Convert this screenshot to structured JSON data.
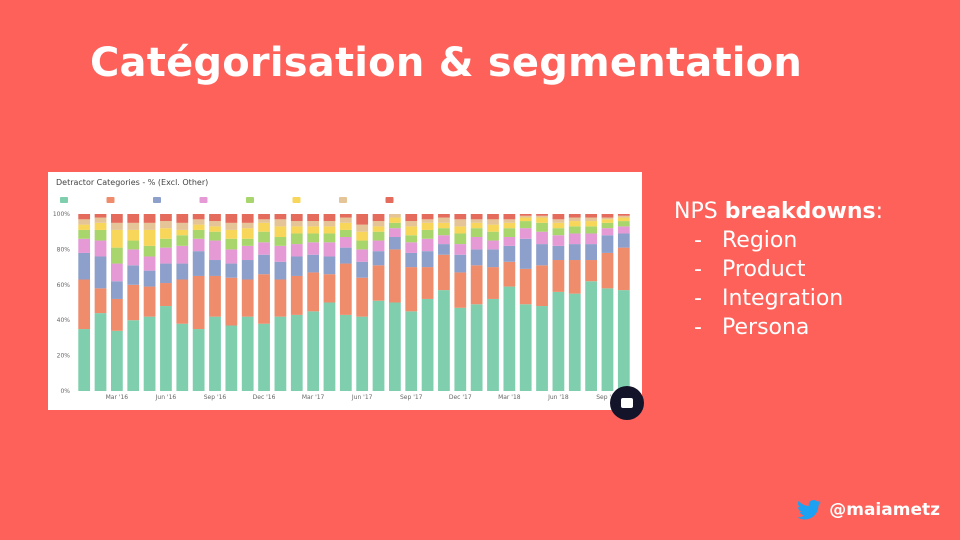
{
  "slide": {
    "title": "Catégorisation & segmentation"
  },
  "side": {
    "heading_prefix": "NPS ",
    "heading_bold": "breakdowns",
    "heading_suffix": ":",
    "bullet": "-",
    "items": [
      "Region",
      "Product",
      "Integration",
      "Persona"
    ]
  },
  "footer": {
    "handle": "@maiametz",
    "icon": "twitter-bird-icon"
  },
  "chart_data": {
    "type": "bar",
    "title": "Detractor Categories - % (Excl. Other)",
    "stacked": true,
    "xlabel": "",
    "ylabel": "",
    "ylim": [
      0,
      100
    ],
    "y_ticks": [
      "0%",
      "20%",
      "40%",
      "60%",
      "80%",
      "100%"
    ],
    "x_tick_labels": [
      {
        "label": "Mar '16",
        "index": 2
      },
      {
        "label": "Jun '16",
        "index": 5
      },
      {
        "label": "Sep '16",
        "index": 8
      },
      {
        "label": "Dec '16",
        "index": 11
      },
      {
        "label": "Mar '17",
        "index": 14
      },
      {
        "label": "Jun '17",
        "index": 17
      },
      {
        "label": "Sep '17",
        "index": 20
      },
      {
        "label": "Dec '17",
        "index": 23
      },
      {
        "label": "Mar '18",
        "index": 26
      },
      {
        "label": "Jun '18",
        "index": 29
      },
      {
        "label": "Sep '18",
        "index": 32
      }
    ],
    "grid": false,
    "legend_position": "top",
    "colors": [
      "#7fcfaf",
      "#ee8c6c",
      "#8da0cb",
      "#e59ad6",
      "#a8d66d",
      "#f7d65a",
      "#e5c597",
      "#e56c5c"
    ],
    "series": [
      {
        "values": [
          35,
          44,
          34,
          40,
          42,
          48,
          38,
          35,
          42,
          37,
          42,
          38,
          42,
          43,
          45,
          50,
          43,
          42,
          51,
          50,
          45,
          52,
          57,
          47,
          49,
          52,
          59,
          49,
          48,
          56,
          55,
          62,
          58,
          57
        ]
      },
      {
        "values": [
          28,
          14,
          18,
          20,
          17,
          13,
          25,
          30,
          23,
          27,
          21,
          28,
          21,
          22,
          22,
          16,
          29,
          22,
          20,
          30,
          25,
          18,
          20,
          20,
          22,
          18,
          14,
          20,
          23,
          18,
          19,
          12,
          20,
          24
        ]
      },
      {
        "values": [
          15,
          18,
          10,
          11,
          9,
          11,
          9,
          14,
          9,
          8,
          11,
          11,
          10,
          11,
          10,
          10,
          9,
          9,
          8,
          7,
          8,
          9,
          6,
          10,
          9,
          10,
          9,
          17,
          12,
          8,
          9,
          9,
          10,
          8
        ]
      },
      {
        "values": [
          8,
          9,
          10,
          9,
          8,
          9,
          10,
          7,
          11,
          8,
          8,
          7,
          9,
          7,
          7,
          8,
          6,
          7,
          6,
          5,
          6,
          7,
          5,
          6,
          7,
          5,
          5,
          6,
          7,
          6,
          6,
          6,
          4,
          4
        ]
      },
      {
        "values": [
          5,
          6,
          9,
          5,
          6,
          5,
          6,
          5,
          5,
          6,
          4,
          6,
          5,
          6,
          5,
          5,
          4,
          5,
          5,
          3,
          4,
          5,
          4,
          6,
          5,
          5,
          5,
          4,
          5,
          4,
          4,
          4,
          3,
          3
        ]
      },
      {
        "values": [
          3,
          4,
          10,
          6,
          9,
          6,
          3,
          3,
          3,
          5,
          6,
          5,
          6,
          4,
          4,
          4,
          4,
          5,
          3,
          3,
          5,
          4,
          3,
          4,
          3,
          4,
          3,
          2,
          3,
          3,
          3,
          3,
          2,
          2
        ]
      },
      {
        "values": [
          3,
          3,
          4,
          4,
          4,
          4,
          4,
          3,
          3,
          4,
          3,
          2,
          4,
          3,
          3,
          3,
          3,
          4,
          3,
          2,
          3,
          2,
          3,
          4,
          2,
          3,
          2,
          1,
          1,
          2,
          2,
          2,
          1,
          1
        ]
      },
      {
        "values": [
          3,
          2,
          5,
          5,
          5,
          4,
          5,
          3,
          4,
          5,
          5,
          3,
          3,
          4,
          4,
          4,
          2,
          6,
          4,
          0,
          4,
          3,
          2,
          3,
          3,
          3,
          3,
          1,
          1,
          3,
          2,
          2,
          2,
          1
        ]
      }
    ]
  }
}
